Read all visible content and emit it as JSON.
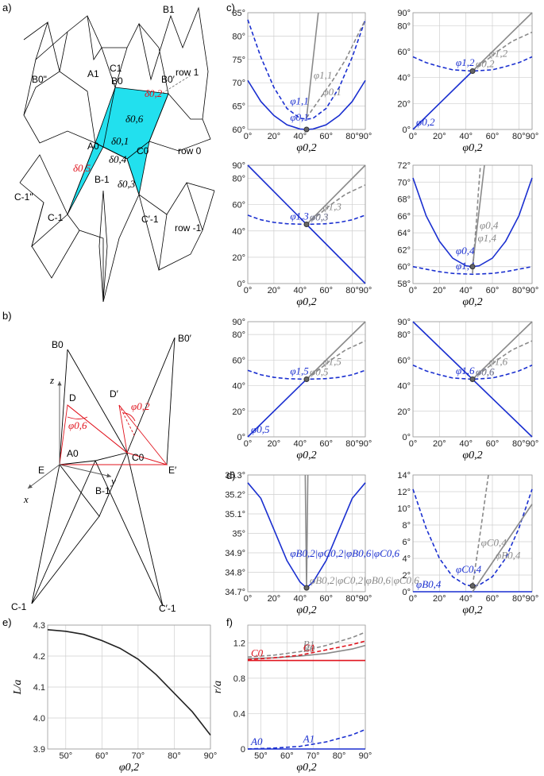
{
  "panel_labels": {
    "a": "a)",
    "b": "b)",
    "c": "c)",
    "d": "d)",
    "e": "e)",
    "f": "f)"
  },
  "panel_a": {
    "labels": [
      "B1",
      "A1",
      "C1",
      "B0\"",
      "B0",
      "B0′",
      "δ0,2",
      "δ0,6",
      "δ0,1",
      "C0",
      "A0",
      "δ0,4",
      "δ0,5",
      "δ0,3",
      "B-1",
      "C-1\"",
      "C-1",
      "C′-1"
    ],
    "rows": [
      "row 1",
      "row 0",
      "row -1"
    ],
    "fill_color": "#22e0ee"
  },
  "panel_b": {
    "labels": [
      "B0",
      "B0′",
      "D",
      "D′",
      "E",
      "E′",
      "A0",
      "C0",
      "B-1",
      "C-1",
      "C′-1",
      "φ0,2",
      "φ0,6"
    ],
    "axes": [
      "x",
      "y",
      "z"
    ]
  },
  "colors": {
    "blue": "#1a2fd0",
    "gray": "#8a8a8a",
    "red": "#e0141e",
    "black": "#222222"
  },
  "chart_data": [
    {
      "id": "c1",
      "type": "line",
      "xlabel": "φ0,2",
      "xlim": [
        0,
        90
      ],
      "ylim": [
        60,
        85
      ],
      "xticks": [
        "0°",
        "20°",
        "40°",
        "60°",
        "80°",
        "90°"
      ],
      "yticks": [
        "60°",
        "65°",
        "70°",
        "75°",
        "80°",
        "85°"
      ],
      "series": [
        {
          "name": "φ0,1",
          "style": "blue-solid",
          "x": [
            0,
            10,
            20,
            30,
            40,
            45,
            50,
            60,
            70,
            80,
            90
          ],
          "y": [
            70.5,
            66.0,
            63.0,
            61.0,
            60.1,
            60.0,
            60.1,
            61.0,
            63.0,
            66.0,
            70.5
          ]
        },
        {
          "name": "φ1,1",
          "style": "blue-dashed",
          "x": [
            0,
            10,
            20,
            30,
            40,
            45,
            50,
            60,
            70,
            80,
            90
          ],
          "y": [
            83.5,
            75.5,
            69.0,
            64.5,
            62.4,
            62.2,
            62.4,
            64.5,
            69.0,
            75.5,
            83.5
          ]
        },
        {
          "name": "φ1,1",
          "style": "gray-solid",
          "x": [
            45,
            48,
            51,
            54
          ],
          "y": [
            62.5,
            70,
            77.5,
            85
          ]
        },
        {
          "name": "φ0,1",
          "style": "gray-dashed",
          "x": [
            45,
            55,
            65,
            75,
            90
          ],
          "y": [
            62.5,
            66.5,
            70.5,
            75,
            83.5
          ]
        }
      ]
    },
    {
      "id": "c2",
      "type": "line",
      "xlabel": "φ0,2",
      "xlim": [
        0,
        90
      ],
      "ylim": [
        0,
        90
      ],
      "xticks": [
        "0°",
        "20°",
        "40°",
        "60°",
        "80°",
        "90°"
      ],
      "yticks": [
        "0°",
        "20°",
        "40°",
        "60°",
        "80°",
        "90°"
      ],
      "series": [
        {
          "name": "φ0,2",
          "style": "blue-solid",
          "x": [
            0,
            45
          ],
          "y": [
            0,
            45
          ]
        },
        {
          "name": "φ1,2",
          "style": "blue-dashed",
          "x": [
            0,
            10,
            20,
            30,
            45,
            60,
            70,
            80,
            90
          ],
          "y": [
            56,
            51.5,
            48.5,
            46,
            45,
            46,
            48.5,
            51.5,
            56
          ]
        },
        {
          "name": "φ0,2",
          "style": "gray-solid",
          "x": [
            45,
            90
          ],
          "y": [
            45,
            90
          ]
        },
        {
          "name": "φ1,2",
          "style": "gray-dashed",
          "x": [
            45,
            55,
            65,
            75,
            90
          ],
          "y": [
            45,
            53,
            61,
            68,
            75
          ]
        }
      ]
    },
    {
      "id": "c3",
      "type": "line",
      "xlabel": "φ0,2",
      "xlim": [
        0,
        90
      ],
      "ylim": [
        0,
        90
      ],
      "xticks": [
        "0°",
        "20°",
        "40°",
        "60°",
        "80°",
        "90°"
      ],
      "yticks": [
        "0°",
        "20°",
        "40°",
        "60°",
        "80°",
        "90°"
      ],
      "series": [
        {
          "name": "φ0,3",
          "style": "blue-solid",
          "x": [
            0,
            45,
            90
          ],
          "y": [
            90,
            45,
            0
          ]
        },
        {
          "name": "φ1,3",
          "style": "blue-dashed",
          "x": [
            0,
            10,
            20,
            30,
            45,
            60,
            70,
            80,
            90
          ],
          "y": [
            52,
            48.5,
            46.5,
            45.5,
            45,
            45.5,
            46.5,
            48.5,
            52
          ]
        },
        {
          "name": "φ0,3",
          "style": "gray-solid",
          "x": [
            45,
            90
          ],
          "y": [
            45,
            90
          ]
        },
        {
          "name": "φ1,3",
          "style": "gray-dashed",
          "x": [
            45,
            55,
            65,
            75,
            90
          ],
          "y": [
            45,
            53,
            61,
            68,
            75
          ]
        }
      ]
    },
    {
      "id": "c4",
      "type": "line",
      "xlabel": "φ0,2",
      "xlim": [
        0,
        90
      ],
      "ylim": [
        58,
        72
      ],
      "xticks": [
        "0°",
        "20°",
        "40°",
        "60°",
        "80°",
        "90°"
      ],
      "yticks": [
        "58°",
        "60°",
        "62°",
        "64°",
        "66°",
        "68°",
        "70°",
        "72°"
      ],
      "series": [
        {
          "name": "φ0,4",
          "style": "blue-solid",
          "x": [
            0,
            10,
            20,
            30,
            40,
            45,
            50,
            60,
            70,
            80,
            90
          ],
          "y": [
            70.5,
            66.0,
            63.0,
            61.0,
            60.1,
            60.0,
            60.1,
            61.0,
            63.0,
            66.0,
            70.5
          ]
        },
        {
          "name": "φ1,4",
          "style": "blue-dashed",
          "x": [
            0,
            10,
            20,
            30,
            45,
            60,
            70,
            80,
            90
          ],
          "y": [
            60.0,
            59.7,
            59.4,
            59.2,
            59.1,
            59.2,
            59.4,
            59.7,
            60.0
          ]
        },
        {
          "name": "φ0,4",
          "style": "gray-solid",
          "x": [
            45,
            48,
            51,
            54
          ],
          "y": [
            60,
            64,
            68,
            72
          ]
        },
        {
          "name": "φ1,4",
          "style": "gray-dashed",
          "x": [
            45,
            46.5,
            48,
            49.5,
            51
          ],
          "y": [
            59.2,
            62.5,
            65.5,
            69,
            72
          ]
        }
      ]
    },
    {
      "id": "c5",
      "type": "line",
      "xlabel": "φ0,2",
      "xlim": [
        0,
        90
      ],
      "ylim": [
        0,
        90
      ],
      "xticks": [
        "0°",
        "20°",
        "40°",
        "60°",
        "80°",
        "90°"
      ],
      "yticks": [
        "0°",
        "20°",
        "40°",
        "60°",
        "80°",
        "90°"
      ],
      "series": [
        {
          "name": "φ0,5",
          "style": "blue-solid",
          "x": [
            0,
            45
          ],
          "y": [
            0,
            45
          ]
        },
        {
          "name": "φ1,5",
          "style": "blue-dashed",
          "x": [
            0,
            10,
            20,
            30,
            45,
            60,
            70,
            80,
            90
          ],
          "y": [
            52,
            48.5,
            46.5,
            45.5,
            45,
            45.5,
            46.5,
            48.5,
            52
          ]
        },
        {
          "name": "φ0,5",
          "style": "gray-solid",
          "x": [
            45,
            90
          ],
          "y": [
            45,
            90
          ]
        },
        {
          "name": "φ1,5",
          "style": "gray-dashed",
          "x": [
            45,
            55,
            65,
            75,
            90
          ],
          "y": [
            45,
            53,
            61,
            68,
            75
          ]
        }
      ]
    },
    {
      "id": "c6",
      "type": "line",
      "xlabel": "φ0,2",
      "xlim": [
        0,
        90
      ],
      "ylim": [
        0,
        90
      ],
      "xticks": [
        "0°",
        "20°",
        "40°",
        "60°",
        "80°",
        "90°"
      ],
      "yticks": [
        "0°",
        "20°",
        "40°",
        "60°",
        "80°",
        "90°"
      ],
      "series": [
        {
          "name": "φ0,6",
          "style": "blue-solid",
          "x": [
            0,
            45,
            90
          ],
          "y": [
            90,
            45,
            0
          ]
        },
        {
          "name": "φ1,6",
          "style": "blue-dashed",
          "x": [
            0,
            10,
            20,
            30,
            45,
            60,
            70,
            80,
            90
          ],
          "y": [
            56,
            51.5,
            48.5,
            46,
            45,
            46,
            48.5,
            51.5,
            56
          ]
        },
        {
          "name": "φ0,6",
          "style": "gray-solid",
          "x": [
            45,
            90
          ],
          "y": [
            45,
            90
          ]
        },
        {
          "name": "φ1,6",
          "style": "gray-dashed",
          "x": [
            45,
            55,
            65,
            75,
            90
          ],
          "y": [
            45,
            53,
            61,
            68,
            75
          ]
        }
      ]
    },
    {
      "id": "d1",
      "type": "line",
      "xlabel": "φ0,2",
      "xlim": [
        0,
        90
      ],
      "ylim": [
        34.7,
        35.3
      ],
      "xticks": [
        "0°",
        "20°",
        "40°",
        "60°",
        "80°",
        "90°"
      ],
      "yticks": [
        "34.7°",
        "34.8°",
        "34.9°",
        "35°",
        "35.1°",
        "35.2°",
        "35.3°"
      ],
      "series": [
        {
          "name": "φB0,2|φC0,2|φB0,6|φC0,6",
          "style": "blue-solid",
          "x": [
            0,
            10,
            20,
            30,
            40,
            45,
            50,
            60,
            70,
            80,
            90
          ],
          "y": [
            35.26,
            35.18,
            35.02,
            34.86,
            34.75,
            34.72,
            34.75,
            34.86,
            35.02,
            35.18,
            35.26
          ]
        },
        {
          "name": "φB0,2|φC0,2|φB0,6|φC0,6",
          "style": "gray-solid",
          "x": [
            44,
            45,
            46
          ],
          "y": [
            35.3,
            34.72,
            35.3
          ]
        }
      ]
    },
    {
      "id": "d2",
      "type": "line",
      "xlabel": "φ0,2",
      "xlim": [
        0,
        90
      ],
      "ylim": [
        0,
        14
      ],
      "xticks": [
        "0°",
        "20°",
        "40°",
        "60°",
        "80°",
        "90°"
      ],
      "yticks": [
        "0°",
        "2°",
        "4°",
        "6°",
        "8°",
        "10°",
        "12°",
        "14°"
      ],
      "series": [
        {
          "name": "φC0,4",
          "style": "blue-dashed",
          "x": [
            0,
            10,
            20,
            30,
            40,
            45,
            50,
            60,
            70,
            80,
            90
          ],
          "y": [
            12.3,
            7.6,
            4.0,
            1.8,
            0.8,
            0.7,
            0.8,
            1.8,
            4.0,
            7.6,
            12.3
          ]
        },
        {
          "name": "φB0,4",
          "style": "blue-solid",
          "x": [
            0,
            90
          ],
          "y": [
            0,
            0
          ]
        },
        {
          "name": "φC0,4",
          "style": "gray-dashed",
          "x": [
            45,
            49,
            53,
            57
          ],
          "y": [
            0.7,
            5,
            9.5,
            14
          ]
        },
        {
          "name": "φB0,4",
          "style": "gray-solid",
          "x": [
            45,
            60,
            75,
            90
          ],
          "y": [
            0,
            3.5,
            7,
            10.5
          ]
        }
      ]
    },
    {
      "id": "e",
      "type": "line",
      "xlabel": "φ0,2",
      "ylabel": "L/a",
      "xlim": [
        45,
        90
      ],
      "ylim": [
        3.9,
        4.3
      ],
      "xticks": [
        "50°",
        "60°",
        "70°",
        "80°",
        "90°"
      ],
      "yticks": [
        "3.9",
        "4.0",
        "4.1",
        "4.2",
        "4.3"
      ],
      "series": [
        {
          "style": "black-solid",
          "x": [
            45,
            50,
            55,
            60,
            65,
            70,
            75,
            80,
            85,
            90
          ],
          "y": [
            4.285,
            4.28,
            4.27,
            4.25,
            4.225,
            4.19,
            4.14,
            4.08,
            4.02,
            3.945
          ]
        }
      ]
    },
    {
      "id": "f",
      "type": "line",
      "xlabel": "φ0,2",
      "ylabel": "r/a",
      "xlim": [
        45,
        90
      ],
      "ylim": [
        0,
        1.4
      ],
      "xticks": [
        "50°",
        "60°",
        "70°",
        "80°",
        "90°"
      ],
      "yticks": [
        "0",
        "0.4",
        "0.8",
        "1.2"
      ],
      "series": [
        {
          "name": "B1",
          "style": "gray-dashed",
          "x": [
            45,
            55,
            65,
            75,
            85,
            90
          ],
          "y": [
            1.04,
            1.06,
            1.1,
            1.17,
            1.26,
            1.32
          ]
        },
        {
          "name": "B0",
          "style": "gray-solid",
          "x": [
            45,
            55,
            65,
            75,
            85,
            90
          ],
          "y": [
            1.02,
            1.03,
            1.05,
            1.08,
            1.13,
            1.17
          ]
        },
        {
          "name": "C1",
          "style": "red-dashed",
          "x": [
            45,
            55,
            65,
            75,
            85,
            90
          ],
          "y": [
            1.01,
            1.03,
            1.06,
            1.12,
            1.18,
            1.22
          ]
        },
        {
          "name": "C0",
          "style": "red-solid",
          "x": [
            45,
            90
          ],
          "y": [
            1.0,
            1.0
          ]
        },
        {
          "name": "A1",
          "style": "blue-dashed",
          "x": [
            45,
            55,
            65,
            75,
            85,
            90
          ],
          "y": [
            0.0,
            0.01,
            0.03,
            0.08,
            0.16,
            0.22
          ]
        },
        {
          "name": "A0",
          "style": "blue-solid",
          "x": [
            45,
            90
          ],
          "y": [
            0.0,
            0.0
          ]
        }
      ]
    }
  ]
}
